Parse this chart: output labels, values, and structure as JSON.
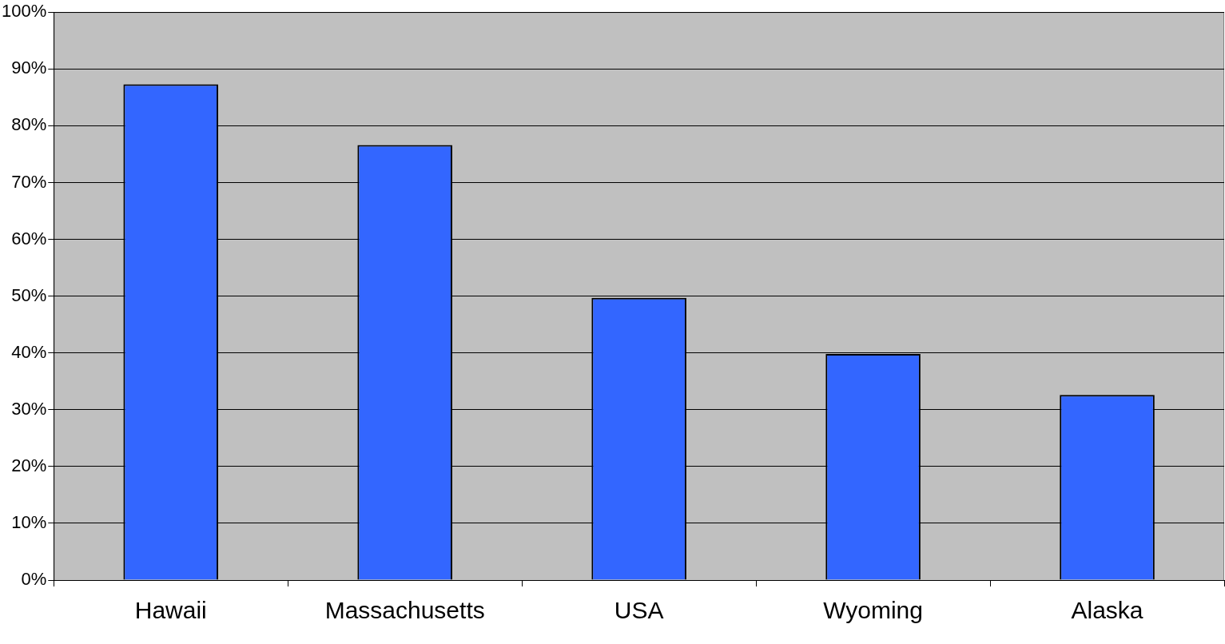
{
  "chart_data": {
    "type": "bar",
    "categories": [
      "Hawaii",
      "Massachusetts",
      "USA",
      "Wyoming",
      "Alaska"
    ],
    "values": [
      87.3,
      76.6,
      49.7,
      39.8,
      32.6
    ],
    "color": "#3366ff",
    "ylim": [
      0,
      100
    ],
    "yticks": [
      {
        "value": 0,
        "label": "0%"
      },
      {
        "value": 10,
        "label": "10%"
      },
      {
        "value": 20,
        "label": "20%"
      },
      {
        "value": 30,
        "label": "30%"
      },
      {
        "value": 40,
        "label": "40%"
      },
      {
        "value": 50,
        "label": "50%"
      },
      {
        "value": 60,
        "label": "60%"
      },
      {
        "value": 70,
        "label": "70%"
      },
      {
        "value": 80,
        "label": "80%"
      },
      {
        "value": 90,
        "label": "90%"
      },
      {
        "value": 100,
        "label": "100%"
      }
    ],
    "grid": "y",
    "legend": false
  }
}
